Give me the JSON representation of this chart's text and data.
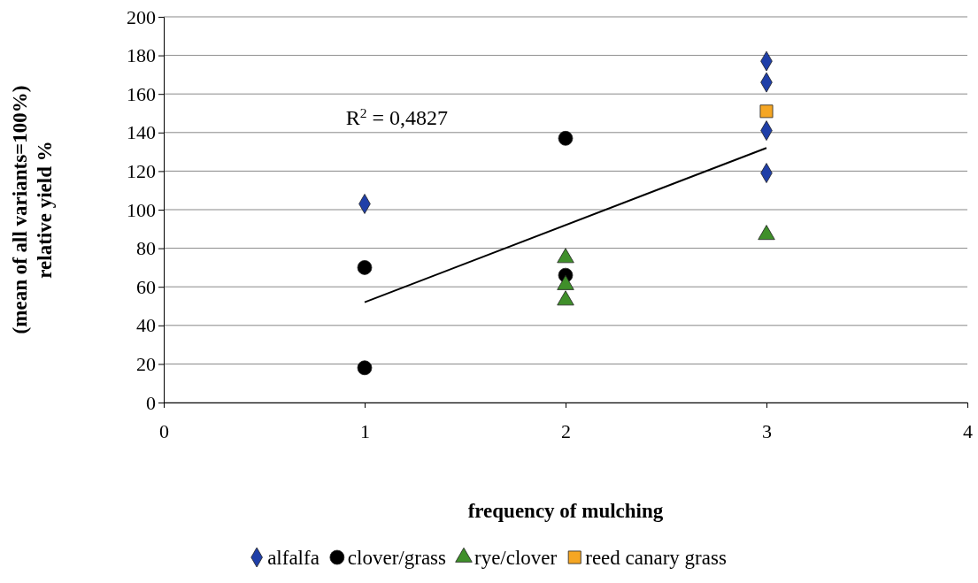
{
  "chart_data": {
    "type": "scatter",
    "xlabel": "frequency of mulching",
    "ylabel": "(mean of all variants=100%)\nrelative yield %",
    "xlim": [
      0,
      4
    ],
    "xticks": [
      0,
      1,
      2,
      3,
      4
    ],
    "ylim": [
      0,
      200
    ],
    "yticks": [
      0,
      20,
      40,
      60,
      80,
      100,
      120,
      140,
      160,
      180,
      200
    ],
    "grid": "y",
    "legend": "bottom",
    "series": [
      {
        "name": "alfalfa",
        "color": "#1f3fa8",
        "marker": "diamond",
        "x": [
          1,
          3,
          3,
          3,
          3
        ],
        "values": [
          103,
          177,
          166,
          141,
          119
        ]
      },
      {
        "name": "clover/grass",
        "color": "#000000",
        "marker": "circle",
        "x": [
          1,
          1,
          2,
          2
        ],
        "values": [
          70,
          18,
          137,
          66
        ]
      },
      {
        "name": "rye/clover",
        "color": "#3f8f2a",
        "marker": "triangle",
        "x": [
          2,
          2,
          2,
          3
        ],
        "values": [
          75,
          61,
          53,
          87
        ]
      },
      {
        "name": "reed canary grass",
        "color": "#f5a623",
        "marker": "square",
        "x": [
          3
        ],
        "values": [
          151
        ]
      },
      {
        "type": "line",
        "color": "#000000",
        "marker": "none",
        "x": [
          1,
          3
        ],
        "values": [
          52,
          132
        ]
      }
    ],
    "annotations": [
      "R$^{2}$ = 0,4827"
    ]
  }
}
